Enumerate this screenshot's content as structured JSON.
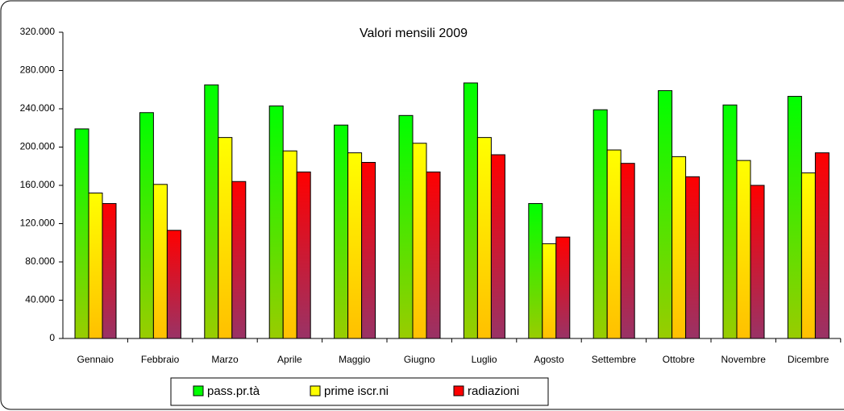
{
  "chart_data": {
    "type": "bar",
    "title": "Valori mensili 2009",
    "categories": [
      "Gennaio",
      "Febbraio",
      "Marzo",
      "Aprile",
      "Maggio",
      "Giugno",
      "Luglio",
      "Agosto",
      "Settembre",
      "Ottobre",
      "Novembre",
      "Dicembre"
    ],
    "series": [
      {
        "name": "pass.pr.tà",
        "color": "#00ff00",
        "values": [
          219000,
          236000,
          265000,
          243000,
          223000,
          233000,
          267000,
          141000,
          239000,
          259000,
          244000,
          253000
        ]
      },
      {
        "name": "prime iscr.ni",
        "color": "#ffff00",
        "values": [
          152000,
          161000,
          210000,
          196000,
          194000,
          204000,
          210000,
          99000,
          197000,
          190000,
          186000,
          173000
        ]
      },
      {
        "name": "radiazioni",
        "color": "#ff0000",
        "values": [
          141000,
          113000,
          164000,
          174000,
          184000,
          174000,
          192000,
          106000,
          183000,
          169000,
          160000,
          194000
        ]
      }
    ],
    "ylim": [
      0,
      320000
    ],
    "yticks": [
      0,
      {
        "value": 40000,
        "label": "40.000"
      },
      {
        "value": 80000,
        "label": "80.000"
      },
      {
        "value": 120000,
        "label": "120.000"
      },
      {
        "value": 160000,
        "label": "160.000"
      },
      {
        "value": 200000,
        "label": "200.000"
      },
      {
        "value": 240000,
        "label": "240.000"
      },
      {
        "value": 280000,
        "label": "280.000"
      },
      {
        "value": 320000,
        "label": "320.000"
      }
    ],
    "legend": "bottom"
  }
}
